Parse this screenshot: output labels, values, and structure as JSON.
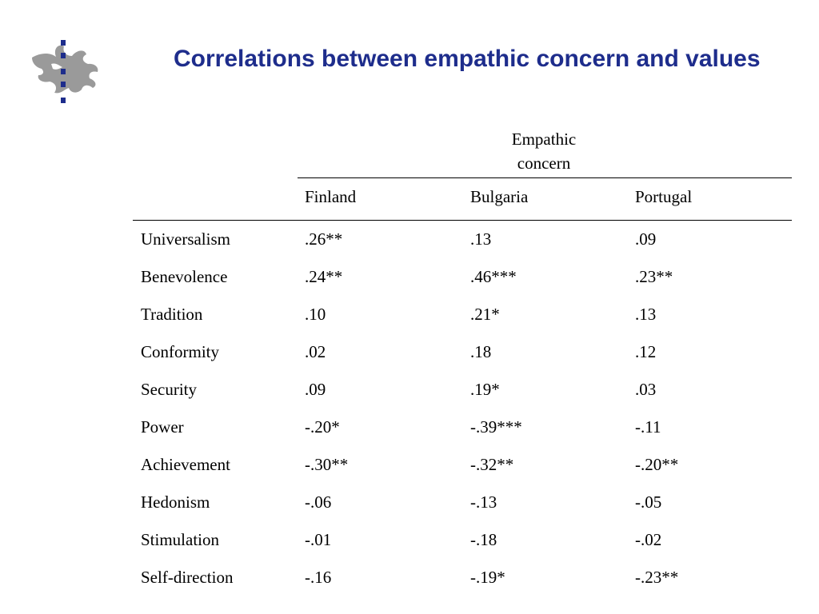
{
  "slide": {
    "title": "Correlations between empathic concern and values"
  },
  "table": {
    "group_header": [
      "Empathic",
      "concern"
    ],
    "columns": [
      "Finland",
      "Bulgaria",
      "Portugal"
    ],
    "rows": [
      {
        "label": "Universalism",
        "values": [
          ".26**",
          ".13",
          ".09"
        ]
      },
      {
        "label": "Benevolence",
        "values": [
          ".24**",
          ".46***",
          ".23**"
        ]
      },
      {
        "label": "Tradition",
        "values": [
          ".10",
          ".21*",
          ".13"
        ]
      },
      {
        "label": "Conformity",
        "values": [
          ".02",
          ".18",
          ".12"
        ]
      },
      {
        "label": "Security",
        "values": [
          ".09",
          ".19*",
          ".03"
        ]
      },
      {
        "label": "Power",
        "values": [
          "-.20*",
          "-.39***",
          "-.11"
        ]
      },
      {
        "label": "Achievement",
        "values": [
          "-.30**",
          "-.32**",
          "-.20**"
        ]
      },
      {
        "label": "Hedonism",
        "values": [
          "-.06",
          "-.13",
          "-.05"
        ]
      },
      {
        "label": "Stimulation",
        "values": [
          "-.01",
          "-.18",
          "-.02"
        ]
      },
      {
        "label": "Self-direction",
        "values": [
          "-.16",
          "-.19*",
          "-.23**"
        ]
      }
    ]
  },
  "logo": {
    "icon": "flame-logo-icon",
    "color": "#9a9a9a",
    "dots_color": "#1e2d8c"
  }
}
